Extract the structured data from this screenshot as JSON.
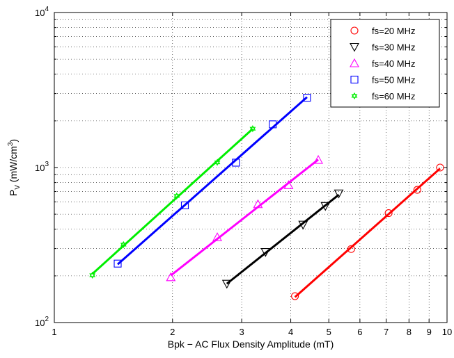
{
  "chart_data": {
    "type": "line",
    "xlabel": "Bpk − AC Flux Density Amplitude (mT)",
    "ylabel": {
      "main": "P",
      "sub": "V",
      "units": " (mW/cm",
      "sup": "3",
      "close": ")"
    },
    "xscale": "log",
    "yscale": "log",
    "xlim": [
      1,
      10
    ],
    "ylim": [
      100,
      10000
    ],
    "grid": true,
    "legend_position": "top-right",
    "x_ticks": [
      {
        "value": 1,
        "label": "1"
      },
      {
        "value": 2,
        "label": "2"
      },
      {
        "value": 3,
        "label": "3"
      },
      {
        "value": 4,
        "label": "4"
      },
      {
        "value": 5,
        "label": "5"
      },
      {
        "value": 6,
        "label": "6"
      },
      {
        "value": 7,
        "label": "7"
      },
      {
        "value": 8,
        "label": "8"
      },
      {
        "value": 9,
        "label": "9"
      },
      {
        "value": 10,
        "label": "10"
      }
    ],
    "y_ticks": [
      {
        "value": 100,
        "base": "10",
        "exp": "2"
      },
      {
        "value": 1000,
        "base": "10",
        "exp": "3"
      },
      {
        "value": 10000,
        "base": "10",
        "exp": "4"
      }
    ],
    "series": [
      {
        "name": "fs=20 MHz",
        "color": "#ff0000",
        "marker": "circle",
        "points": [
          [
            4.1,
            148
          ],
          [
            5.7,
            298
          ],
          [
            7.1,
            508
          ],
          [
            8.4,
            718
          ],
          [
            9.6,
            1000
          ]
        ]
      },
      {
        "name": "fs=30 MHz",
        "color": "#000000",
        "marker": "triangle-down",
        "points": [
          [
            2.75,
            178
          ],
          [
            3.45,
            285
          ],
          [
            4.3,
            428
          ],
          [
            4.9,
            565
          ],
          [
            5.3,
            680
          ]
        ]
      },
      {
        "name": "fs=40 MHz",
        "color": "#ff00ff",
        "marker": "triangle-up",
        "points": [
          [
            1.98,
            196
          ],
          [
            2.6,
            355
          ],
          [
            3.3,
            580
          ],
          [
            3.95,
            770
          ],
          [
            4.7,
            1120
          ]
        ]
      },
      {
        "name": "fs=50 MHz",
        "color": "#0000ff",
        "marker": "square",
        "points": [
          [
            1.45,
            240
          ],
          [
            2.15,
            570
          ],
          [
            2.9,
            1075
          ],
          [
            3.6,
            1900
          ],
          [
            4.4,
            2820
          ]
        ]
      },
      {
        "name": "fs=60 MHz",
        "color": "#00ee00",
        "marker": "hexagram",
        "points": [
          [
            1.25,
            202
          ],
          [
            1.5,
            318
          ],
          [
            2.05,
            655
          ],
          [
            2.6,
            1080
          ],
          [
            3.2,
            1780
          ]
        ]
      }
    ]
  }
}
